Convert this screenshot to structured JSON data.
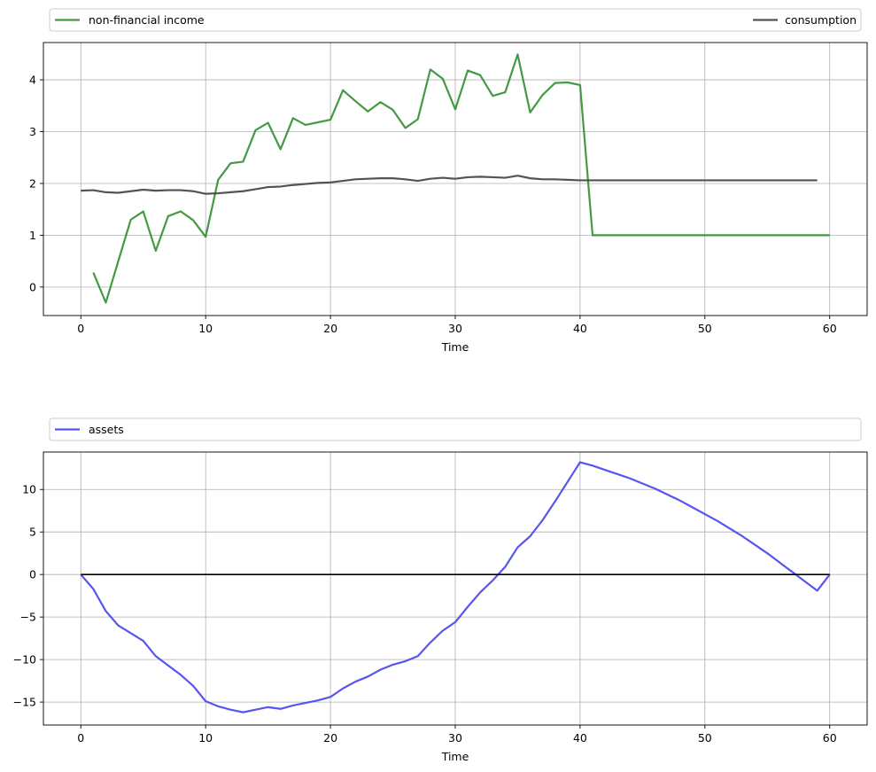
{
  "chart_data": [
    {
      "type": "line",
      "xlabel": "Time",
      "ylabel": "",
      "xlim": [
        -3,
        63
      ],
      "ylim": [
        -0.55,
        4.72
      ],
      "xticks": [
        0,
        10,
        20,
        30,
        40,
        50,
        60
      ],
      "yticks": [
        0,
        1,
        2,
        3,
        4
      ],
      "grid": true,
      "legend_placement": "above",
      "series": [
        {
          "name": "non-financial income",
          "color": "#2f8f2f",
          "x": [
            1,
            2,
            3,
            4,
            5,
            6,
            7,
            8,
            9,
            10,
            11,
            12,
            13,
            14,
            15,
            16,
            17,
            18,
            19,
            20,
            21,
            22,
            23,
            24,
            25,
            26,
            27,
            28,
            29,
            30,
            31,
            32,
            33,
            34,
            35,
            36,
            37,
            38,
            39,
            40,
            41,
            42,
            43,
            44,
            45,
            46,
            47,
            48,
            49,
            50,
            51,
            52,
            53,
            54,
            55,
            56,
            57,
            58,
            59,
            60
          ],
          "values": [
            0.28,
            -0.3,
            0.5,
            1.3,
            1.46,
            0.7,
            1.37,
            1.46,
            1.29,
            0.97,
            2.07,
            2.39,
            2.42,
            3.03,
            3.17,
            2.66,
            3.26,
            3.13,
            3.18,
            3.23,
            3.8,
            3.59,
            3.39,
            3.57,
            3.42,
            3.07,
            3.24,
            4.2,
            4.02,
            3.43,
            4.18,
            4.09,
            3.69,
            3.76,
            4.49,
            3.37,
            3.71,
            3.94,
            3.95,
            3.9,
            1.0,
            1.0,
            1.0,
            1.0,
            1.0,
            1.0,
            1.0,
            1.0,
            1.0,
            1.0,
            1.0,
            1.0,
            1.0,
            1.0,
            1.0,
            1.0,
            1.0,
            1.0,
            1.0,
            1.0
          ]
        },
        {
          "name": "consumption",
          "color": "#404040",
          "x": [
            0,
            1,
            2,
            3,
            4,
            5,
            6,
            7,
            8,
            9,
            10,
            11,
            12,
            13,
            14,
            15,
            16,
            17,
            18,
            19,
            20,
            21,
            22,
            23,
            24,
            25,
            26,
            27,
            28,
            29,
            30,
            31,
            32,
            33,
            34,
            35,
            36,
            37,
            38,
            39,
            40,
            41,
            42,
            43,
            44,
            45,
            46,
            47,
            48,
            49,
            50,
            51,
            52,
            53,
            54,
            55,
            56,
            57,
            58,
            59
          ],
          "values": [
            1.86,
            1.87,
            1.83,
            1.82,
            1.85,
            1.88,
            1.86,
            1.87,
            1.87,
            1.85,
            1.8,
            1.81,
            1.83,
            1.85,
            1.89,
            1.93,
            1.94,
            1.97,
            1.99,
            2.01,
            2.02,
            2.05,
            2.08,
            2.09,
            2.1,
            2.1,
            2.08,
            2.05,
            2.09,
            2.11,
            2.09,
            2.12,
            2.13,
            2.12,
            2.11,
            2.15,
            2.1,
            2.08,
            2.08,
            2.07,
            2.06,
            2.06,
            2.06,
            2.06,
            2.06,
            2.06,
            2.06,
            2.06,
            2.06,
            2.06,
            2.06,
            2.06,
            2.06,
            2.06,
            2.06,
            2.06,
            2.06,
            2.06,
            2.06,
            2.06
          ]
        }
      ]
    },
    {
      "type": "line",
      "xlabel": "Time",
      "ylabel": "",
      "xlim": [
        -3,
        63
      ],
      "ylim": [
        -17.7,
        14.4
      ],
      "xticks": [
        0,
        10,
        20,
        30,
        40,
        50,
        60
      ],
      "yticks": [
        -15,
        -10,
        -5,
        0,
        5,
        10
      ],
      "grid": true,
      "legend_placement": "above",
      "series": [
        {
          "name": "assets",
          "color": "#4444ee",
          "x": [
            0,
            1,
            2,
            3,
            4,
            5,
            6,
            7,
            8,
            9,
            10,
            11,
            12,
            13,
            14,
            15,
            16,
            17,
            18,
            19,
            20,
            21,
            22,
            23,
            24,
            25,
            26,
            27,
            28,
            29,
            30,
            31,
            32,
            33,
            34,
            35,
            36,
            37,
            38,
            39,
            40,
            41,
            42,
            43,
            44,
            45,
            46,
            47,
            48,
            49,
            50,
            51,
            52,
            53,
            54,
            55,
            56,
            57,
            58,
            59,
            60
          ],
          "values": [
            0,
            -1.7,
            -4.3,
            -6.0,
            -6.9,
            -7.8,
            -9.6,
            -10.7,
            -11.8,
            -13.1,
            -14.9,
            -15.5,
            -15.9,
            -16.2,
            -15.9,
            -15.6,
            -15.8,
            -15.4,
            -15.1,
            -14.8,
            -14.4,
            -13.4,
            -12.6,
            -12.0,
            -11.2,
            -10.6,
            -10.2,
            -9.6,
            -8.0,
            -6.6,
            -5.6,
            -3.8,
            -2.1,
            -0.7,
            0.9,
            3.2,
            4.5,
            6.4,
            8.6,
            10.9,
            13.2,
            12.8,
            12.3,
            11.8,
            11.3,
            10.7,
            10.1,
            9.4,
            8.7,
            7.9,
            7.1,
            6.3,
            5.4,
            4.5,
            3.5,
            2.5,
            1.4,
            0.3,
            -0.8,
            -1.9,
            0
          ]
        },
        {
          "name": "",
          "color": "#000000",
          "x": [
            0,
            60
          ],
          "values": [
            0,
            0
          ]
        }
      ]
    }
  ]
}
